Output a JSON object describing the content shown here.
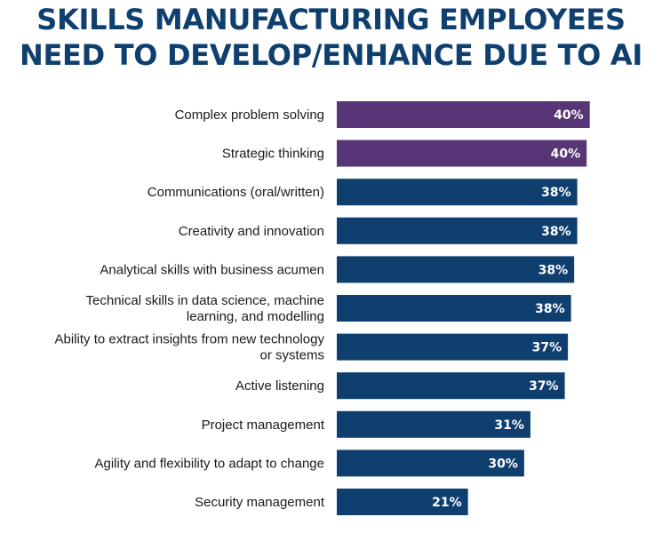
{
  "colors": {
    "title": "#0f3f6e",
    "highlight": "#583576",
    "default": "#0f3f6e",
    "label_text": "#1a1a1a",
    "value_text": "#ffffff"
  },
  "chart_data": {
    "type": "bar",
    "orientation": "horizontal",
    "title_lines": [
      "SKILLS MANUFACTURING EMPLOYEES",
      "NEED TO DEVELOP/ENHANCE DUE TO AI"
    ],
    "categories": [
      [
        "Complex problem solving"
      ],
      [
        "Strategic thinking"
      ],
      [
        "Communications (oral/written)"
      ],
      [
        "Creativity and innovation"
      ],
      [
        "Analytical skills with business acumen"
      ],
      [
        "Technical skills in data science, machine",
        "learning, and modelling"
      ],
      [
        "Ability to extract insights from new technology",
        "or systems"
      ],
      [
        "Active listening"
      ],
      [
        "Project management"
      ],
      [
        "Agility and flexibility to adapt to change"
      ],
      [
        "Security management"
      ]
    ],
    "values": [
      40.5,
      40,
      38.5,
      38.5,
      38,
      37.5,
      37,
      36.5,
      31,
      30,
      21
    ],
    "value_labels": [
      "40%",
      "40%",
      "38%",
      "38%",
      "38%",
      "38%",
      "37%",
      "37%",
      "31%",
      "30%",
      "21%"
    ],
    "highlighted": [
      true,
      true,
      false,
      false,
      false,
      false,
      false,
      false,
      false,
      false,
      false
    ],
    "xlim": [
      0,
      45
    ],
    "unit": "%",
    "grid": false,
    "legend": "none"
  }
}
